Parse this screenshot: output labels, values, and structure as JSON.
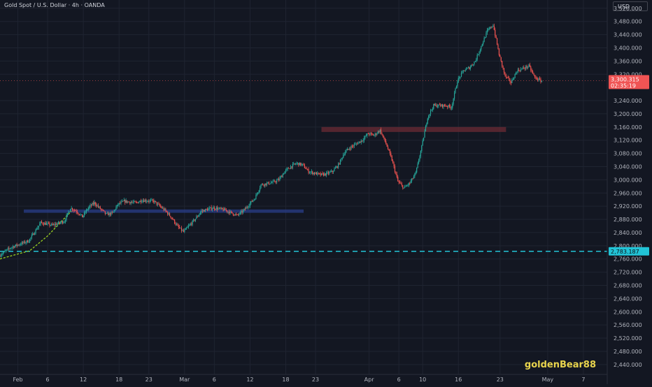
{
  "header": {
    "symbol": "Gold Spot / U.S. Dollar · 4h · OANDA"
  },
  "currency": "USD",
  "watermark": "goldenBear88",
  "colors": {
    "background": "#131722",
    "grid": "#1f2431",
    "up": "#26a69a",
    "down": "#ef5350",
    "support_zone": "#2a3e88",
    "resistance_zone": "#6b2b34",
    "level_line": "#22c3d6",
    "trend_curve": "#9ad11f",
    "price_label": "#f05454"
  },
  "chart_data": {
    "type": "candlestick",
    "title": "Gold Spot / U.S. Dollar · 4h · OANDA",
    "xlabel": "",
    "ylabel": "",
    "grid": true,
    "ylim": [
      2410,
      3545
    ],
    "y_ticks": [
      "3,520.000",
      "3,480.000",
      "3,440.000",
      "3,400.000",
      "3,360.000",
      "3,320.000",
      "3,240.000",
      "3,200.000",
      "3,160.000",
      "3,120.000",
      "3,080.000",
      "3,040.000",
      "3,000.000",
      "2,960.000",
      "2,920.000",
      "2,880.000",
      "2,840.000",
      "2,800.000",
      "2,760.000",
      "2,720.000",
      "2,680.000",
      "2,640.000",
      "2,600.000",
      "2,560.000",
      "2,520.000",
      "2,480.000",
      "2,440.000"
    ],
    "x_ticks": [
      {
        "label": "Feb",
        "date": "2025-02-01"
      },
      {
        "label": "6",
        "date": "2025-02-06"
      },
      {
        "label": "12",
        "date": "2025-02-12"
      },
      {
        "label": "18",
        "date": "2025-02-18"
      },
      {
        "label": "23",
        "date": "2025-02-23"
      },
      {
        "label": "Mar",
        "date": "2025-03-01"
      },
      {
        "label": "6",
        "date": "2025-03-06"
      },
      {
        "label": "12",
        "date": "2025-03-12"
      },
      {
        "label": "18",
        "date": "2025-03-18"
      },
      {
        "label": "23",
        "date": "2025-03-23"
      },
      {
        "label": "Apr",
        "date": "2025-04-01"
      },
      {
        "label": "6",
        "date": "2025-04-06"
      },
      {
        "label": "10",
        "date": "2025-04-10"
      },
      {
        "label": "16",
        "date": "2025-04-16"
      },
      {
        "label": "23",
        "date": "2025-04-23"
      },
      {
        "label": "May",
        "date": "2025-05-01"
      },
      {
        "label": "7",
        "date": "2025-05-07"
      }
    ],
    "x_range": [
      "2025-01-29",
      "2025-05-11"
    ],
    "price_path": [
      [
        "2025-01-29",
        2770
      ],
      [
        "2025-01-31",
        2795
      ],
      [
        "2025-02-03",
        2815
      ],
      [
        "2025-02-05",
        2870
      ],
      [
        "2025-02-07",
        2862
      ],
      [
        "2025-02-09",
        2875
      ],
      [
        "2025-02-10",
        2915
      ],
      [
        "2025-02-11",
        2905
      ],
      [
        "2025-02-12",
        2888
      ],
      [
        "2025-02-13",
        2915
      ],
      [
        "2025-02-14",
        2930
      ],
      [
        "2025-02-16",
        2895
      ],
      [
        "2025-02-17",
        2898
      ],
      [
        "2025-02-18",
        2925
      ],
      [
        "2025-02-19",
        2935
      ],
      [
        "2025-02-21",
        2930
      ],
      [
        "2025-02-22",
        2938
      ],
      [
        "2025-02-24",
        2935
      ],
      [
        "2025-02-26",
        2905
      ],
      [
        "2025-02-27",
        2885
      ],
      [
        "2025-02-28",
        2858
      ],
      [
        "2025-03-01",
        2842
      ],
      [
        "2025-03-03",
        2882
      ],
      [
        "2025-03-04",
        2905
      ],
      [
        "2025-03-06",
        2915
      ],
      [
        "2025-03-08",
        2908
      ],
      [
        "2025-03-10",
        2892
      ],
      [
        "2025-03-11",
        2905
      ],
      [
        "2025-03-12",
        2925
      ],
      [
        "2025-03-13",
        2945
      ],
      [
        "2025-03-14",
        2985
      ],
      [
        "2025-03-16",
        2992
      ],
      [
        "2025-03-17",
        3000
      ],
      [
        "2025-03-18",
        3025
      ],
      [
        "2025-03-19",
        3040
      ],
      [
        "2025-03-20",
        3050
      ],
      [
        "2025-03-21",
        3045
      ],
      [
        "2025-03-22",
        3025
      ],
      [
        "2025-03-24",
        3015
      ],
      [
        "2025-03-25",
        3018
      ],
      [
        "2025-03-26",
        3025
      ],
      [
        "2025-03-27",
        3045
      ],
      [
        "2025-03-28",
        3082
      ],
      [
        "2025-03-29",
        3098
      ],
      [
        "2025-03-31",
        3120
      ],
      [
        "2025-04-01",
        3140
      ],
      [
        "2025-04-02",
        3135
      ],
      [
        "2025-04-03",
        3150
      ],
      [
        "2025-04-04",
        3110
      ],
      [
        "2025-04-05",
        3060
      ],
      [
        "2025-04-06",
        2995
      ],
      [
        "2025-04-07",
        2975
      ],
      [
        "2025-04-08",
        2990
      ],
      [
        "2025-04-09",
        3020
      ],
      [
        "2025-04-10",
        3100
      ],
      [
        "2025-04-11",
        3190
      ],
      [
        "2025-04-12",
        3225
      ],
      [
        "2025-04-14",
        3225
      ],
      [
        "2025-04-15",
        3220
      ],
      [
        "2025-04-16",
        3300
      ],
      [
        "2025-04-17",
        3330
      ],
      [
        "2025-04-18",
        3340
      ],
      [
        "2025-04-19",
        3360
      ],
      [
        "2025-04-21",
        3450
      ],
      [
        "2025-04-22",
        3470
      ],
      [
        "2025-04-23",
        3380
      ],
      [
        "2025-04-24",
        3315
      ],
      [
        "2025-04-25",
        3295
      ],
      [
        "2025-04-26",
        3330
      ],
      [
        "2025-04-28",
        3345
      ],
      [
        "2025-04-29",
        3310
      ],
      [
        "2025-04-30",
        3300
      ]
    ],
    "zones": [
      {
        "name": "support",
        "from": "2025-02-02",
        "to": "2025-03-21",
        "low": 2900,
        "high": 2910
      },
      {
        "name": "resistance",
        "from": "2025-03-24",
        "to": "2025-04-24",
        "low": 3145,
        "high": 3160
      }
    ],
    "level_line": 2783.187,
    "level_label": "2,783.187",
    "current_price": 3300.315,
    "current_price_label": "3,300.315",
    "countdown_label": "02:35:19",
    "trend_curve": [
      [
        "2025-01-29",
        2760
      ],
      [
        "2025-02-03",
        2785
      ],
      [
        "2025-02-06",
        2830
      ],
      [
        "2025-02-08",
        2868
      ],
      [
        "2025-02-10",
        2905
      ]
    ]
  }
}
